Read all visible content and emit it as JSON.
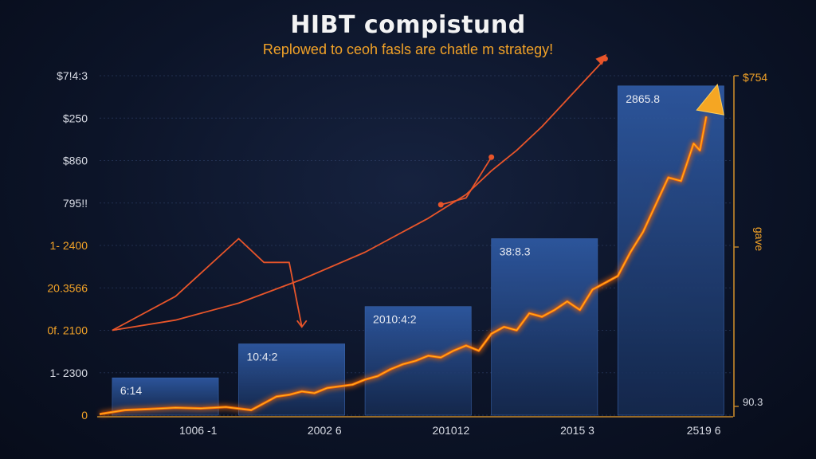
{
  "chart_data": {
    "type": "bar",
    "title": "HIBT compistund",
    "subtitle": "Replowed to ceoh fasls are chatle m strategy!",
    "y_tick_labels": [
      "$7!4:3",
      "$250",
      "$860",
      "795!!",
      "1- 2400",
      "20.3566",
      "0f. 2100",
      "1- 2300",
      "0"
    ],
    "y_tick_colors": [
      "#d8dbe4",
      "#d8dbe4",
      "#d8dbe4",
      "#d8dbe4",
      "#f2a227",
      "#f2a227",
      "#f2a227",
      "#d8dbe4",
      "#f2a227"
    ],
    "x_tick_labels": [
      "1006 -1",
      "2002 6",
      "201012",
      "2015 3",
      "2519 6"
    ],
    "right_axis": {
      "top_label": "$754",
      "side_label": "gave",
      "bottom_label": "90.3"
    },
    "ylim": [
      0,
      100
    ],
    "bars": [
      {
        "label": "6:14",
        "value": 11
      },
      {
        "label": "10:4:2",
        "value": 21
      },
      {
        "label": "2010:4:2",
        "value": 32
      },
      {
        "label": "38:8.3",
        "value": 52
      },
      {
        "label": "2865.8",
        "value": 97
      }
    ],
    "series": [
      {
        "values": [
          [
            0,
            0.3
          ],
          [
            4,
            1.5
          ],
          [
            8,
            1.8
          ],
          [
            12,
            2.2
          ],
          [
            16,
            2.0
          ],
          [
            20,
            2.4
          ],
          [
            24,
            1.5
          ],
          [
            26,
            3.5
          ],
          [
            28,
            5.5
          ],
          [
            30,
            6.0
          ],
          [
            32,
            7.0
          ],
          [
            34,
            6.5
          ],
          [
            36,
            8.0
          ],
          [
            38,
            8.5
          ],
          [
            40,
            9.0
          ],
          [
            42,
            10.5
          ],
          [
            44,
            11.5
          ],
          [
            46,
            13.5
          ],
          [
            48,
            15.0
          ],
          [
            50,
            16.0
          ],
          [
            52,
            17.5
          ],
          [
            54,
            17.0
          ],
          [
            56,
            19.0
          ],
          [
            58,
            20.5
          ],
          [
            60,
            19.0
          ],
          [
            62,
            24.0
          ],
          [
            64,
            26.0
          ],
          [
            66,
            25.0
          ],
          [
            68,
            30.0
          ],
          [
            70,
            29.0
          ],
          [
            72,
            31.0
          ],
          [
            74,
            33.5
          ],
          [
            76,
            31.0
          ],
          [
            78,
            37.0
          ],
          [
            80,
            39.0
          ],
          [
            82,
            41.0
          ],
          [
            84,
            48.0
          ],
          [
            86,
            54.0
          ],
          [
            88,
            62.0
          ],
          [
            90,
            70.0
          ],
          [
            92,
            69.0
          ],
          [
            94,
            80.0
          ],
          [
            95,
            78.0
          ],
          [
            96,
            88.0
          ]
        ]
      },
      {
        "values": [
          [
            2,
            25
          ],
          [
            12,
            28
          ],
          [
            22,
            33
          ],
          [
            32,
            40
          ],
          [
            42,
            48
          ],
          [
            52,
            58
          ],
          [
            58,
            65
          ],
          [
            62,
            72
          ],
          [
            66,
            78
          ],
          [
            70,
            85
          ],
          [
            74,
            93
          ],
          [
            78,
            101
          ],
          [
            80,
            105
          ]
        ]
      },
      {
        "values": [
          [
            2,
            25
          ],
          [
            12,
            35
          ],
          [
            22,
            52
          ],
          [
            26,
            45
          ],
          [
            30,
            45
          ],
          [
            32,
            26
          ]
        ]
      },
      {
        "values": [
          [
            54,
            62
          ],
          [
            58,
            64
          ],
          [
            62,
            76
          ]
        ]
      }
    ],
    "markers": [
      [
        54,
        62
      ],
      [
        62,
        76
      ],
      [
        80,
        105
      ]
    ],
    "grid": true,
    "colors": {
      "bar_top": "#2f5aa4",
      "bar_bottom": "#15294e",
      "line_glow": "#ff6a00",
      "line_core": "#ffb020",
      "curve": "#e8552a",
      "arrow": "#f5a623",
      "grid": "#33456e",
      "axis": "#c7892a",
      "tick": "#d8dbe4",
      "accent_tick": "#f2a227"
    }
  }
}
